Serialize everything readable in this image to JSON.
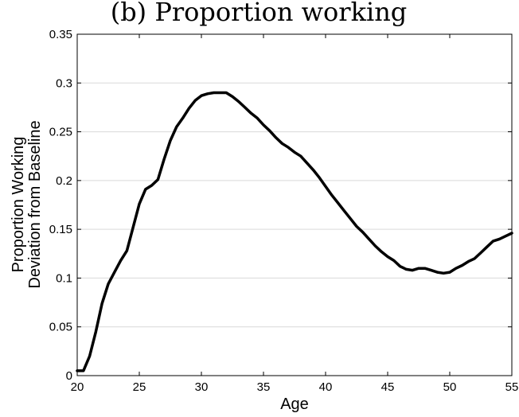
{
  "chart_data": {
    "type": "line",
    "title": "(b) Proportion working",
    "xlabel": "Age",
    "ylabel_lines": [
      "Proportion Working",
      "Deviation from Baseline"
    ],
    "xlim": [
      20,
      55
    ],
    "ylim": [
      0,
      0.35
    ],
    "grid": "horizontal",
    "x_ticks": [
      20,
      25,
      30,
      35,
      40,
      45,
      50,
      55
    ],
    "y_ticks": [
      0,
      0.05,
      0.1,
      0.15,
      0.2,
      0.25,
      0.3,
      0.35
    ],
    "x_tick_labels": [
      "20",
      "25",
      "30",
      "35",
      "40",
      "45",
      "50",
      "55"
    ],
    "y_tick_labels": [
      "0",
      "0.05",
      "0.1",
      "0.15",
      "0.2",
      "0.25",
      "0.3",
      "0.35"
    ],
    "series": [
      {
        "color": "#000000",
        "x": [
          20,
          20.5,
          21,
          21.5,
          22,
          22.5,
          23,
          23.5,
          24,
          24.5,
          25,
          25.5,
          26,
          26.5,
          27,
          27.5,
          28,
          28.5,
          29,
          29.5,
          30,
          30.5,
          31,
          31.5,
          32,
          32.5,
          33,
          33.5,
          34,
          34.5,
          35,
          35.5,
          36,
          36.5,
          37,
          37.5,
          38,
          38.5,
          39,
          39.5,
          40,
          40.5,
          41,
          41.5,
          42,
          42.5,
          43,
          43.5,
          44,
          44.5,
          45,
          45.5,
          46,
          46.5,
          47,
          47.5,
          48,
          48.5,
          49,
          49.5,
          50,
          50.5,
          51,
          51.5,
          52,
          52.5,
          53,
          53.5,
          54,
          54.5,
          55
        ],
        "y": [
          0.005,
          0.005,
          0.02,
          0.045,
          0.074,
          0.094,
          0.106,
          0.118,
          0.128,
          0.152,
          0.176,
          0.191,
          0.195,
          0.201,
          0.222,
          0.241,
          0.255,
          0.264,
          0.274,
          0.282,
          0.287,
          0.289,
          0.29,
          0.29,
          0.29,
          0.286,
          0.281,
          0.275,
          0.269,
          0.264,
          0.257,
          0.251,
          0.244,
          0.238,
          0.234,
          0.229,
          0.225,
          0.218,
          0.211,
          0.203,
          0.194,
          0.185,
          0.177,
          0.169,
          0.161,
          0.153,
          0.147,
          0.14,
          0.133,
          0.127,
          0.122,
          0.118,
          0.112,
          0.109,
          0.108,
          0.11,
          0.11,
          0.108,
          0.106,
          0.105,
          0.106,
          0.11,
          0.113,
          0.117,
          0.12,
          0.126,
          0.132,
          0.138,
          0.14,
          0.143,
          0.146
        ]
      }
    ]
  }
}
